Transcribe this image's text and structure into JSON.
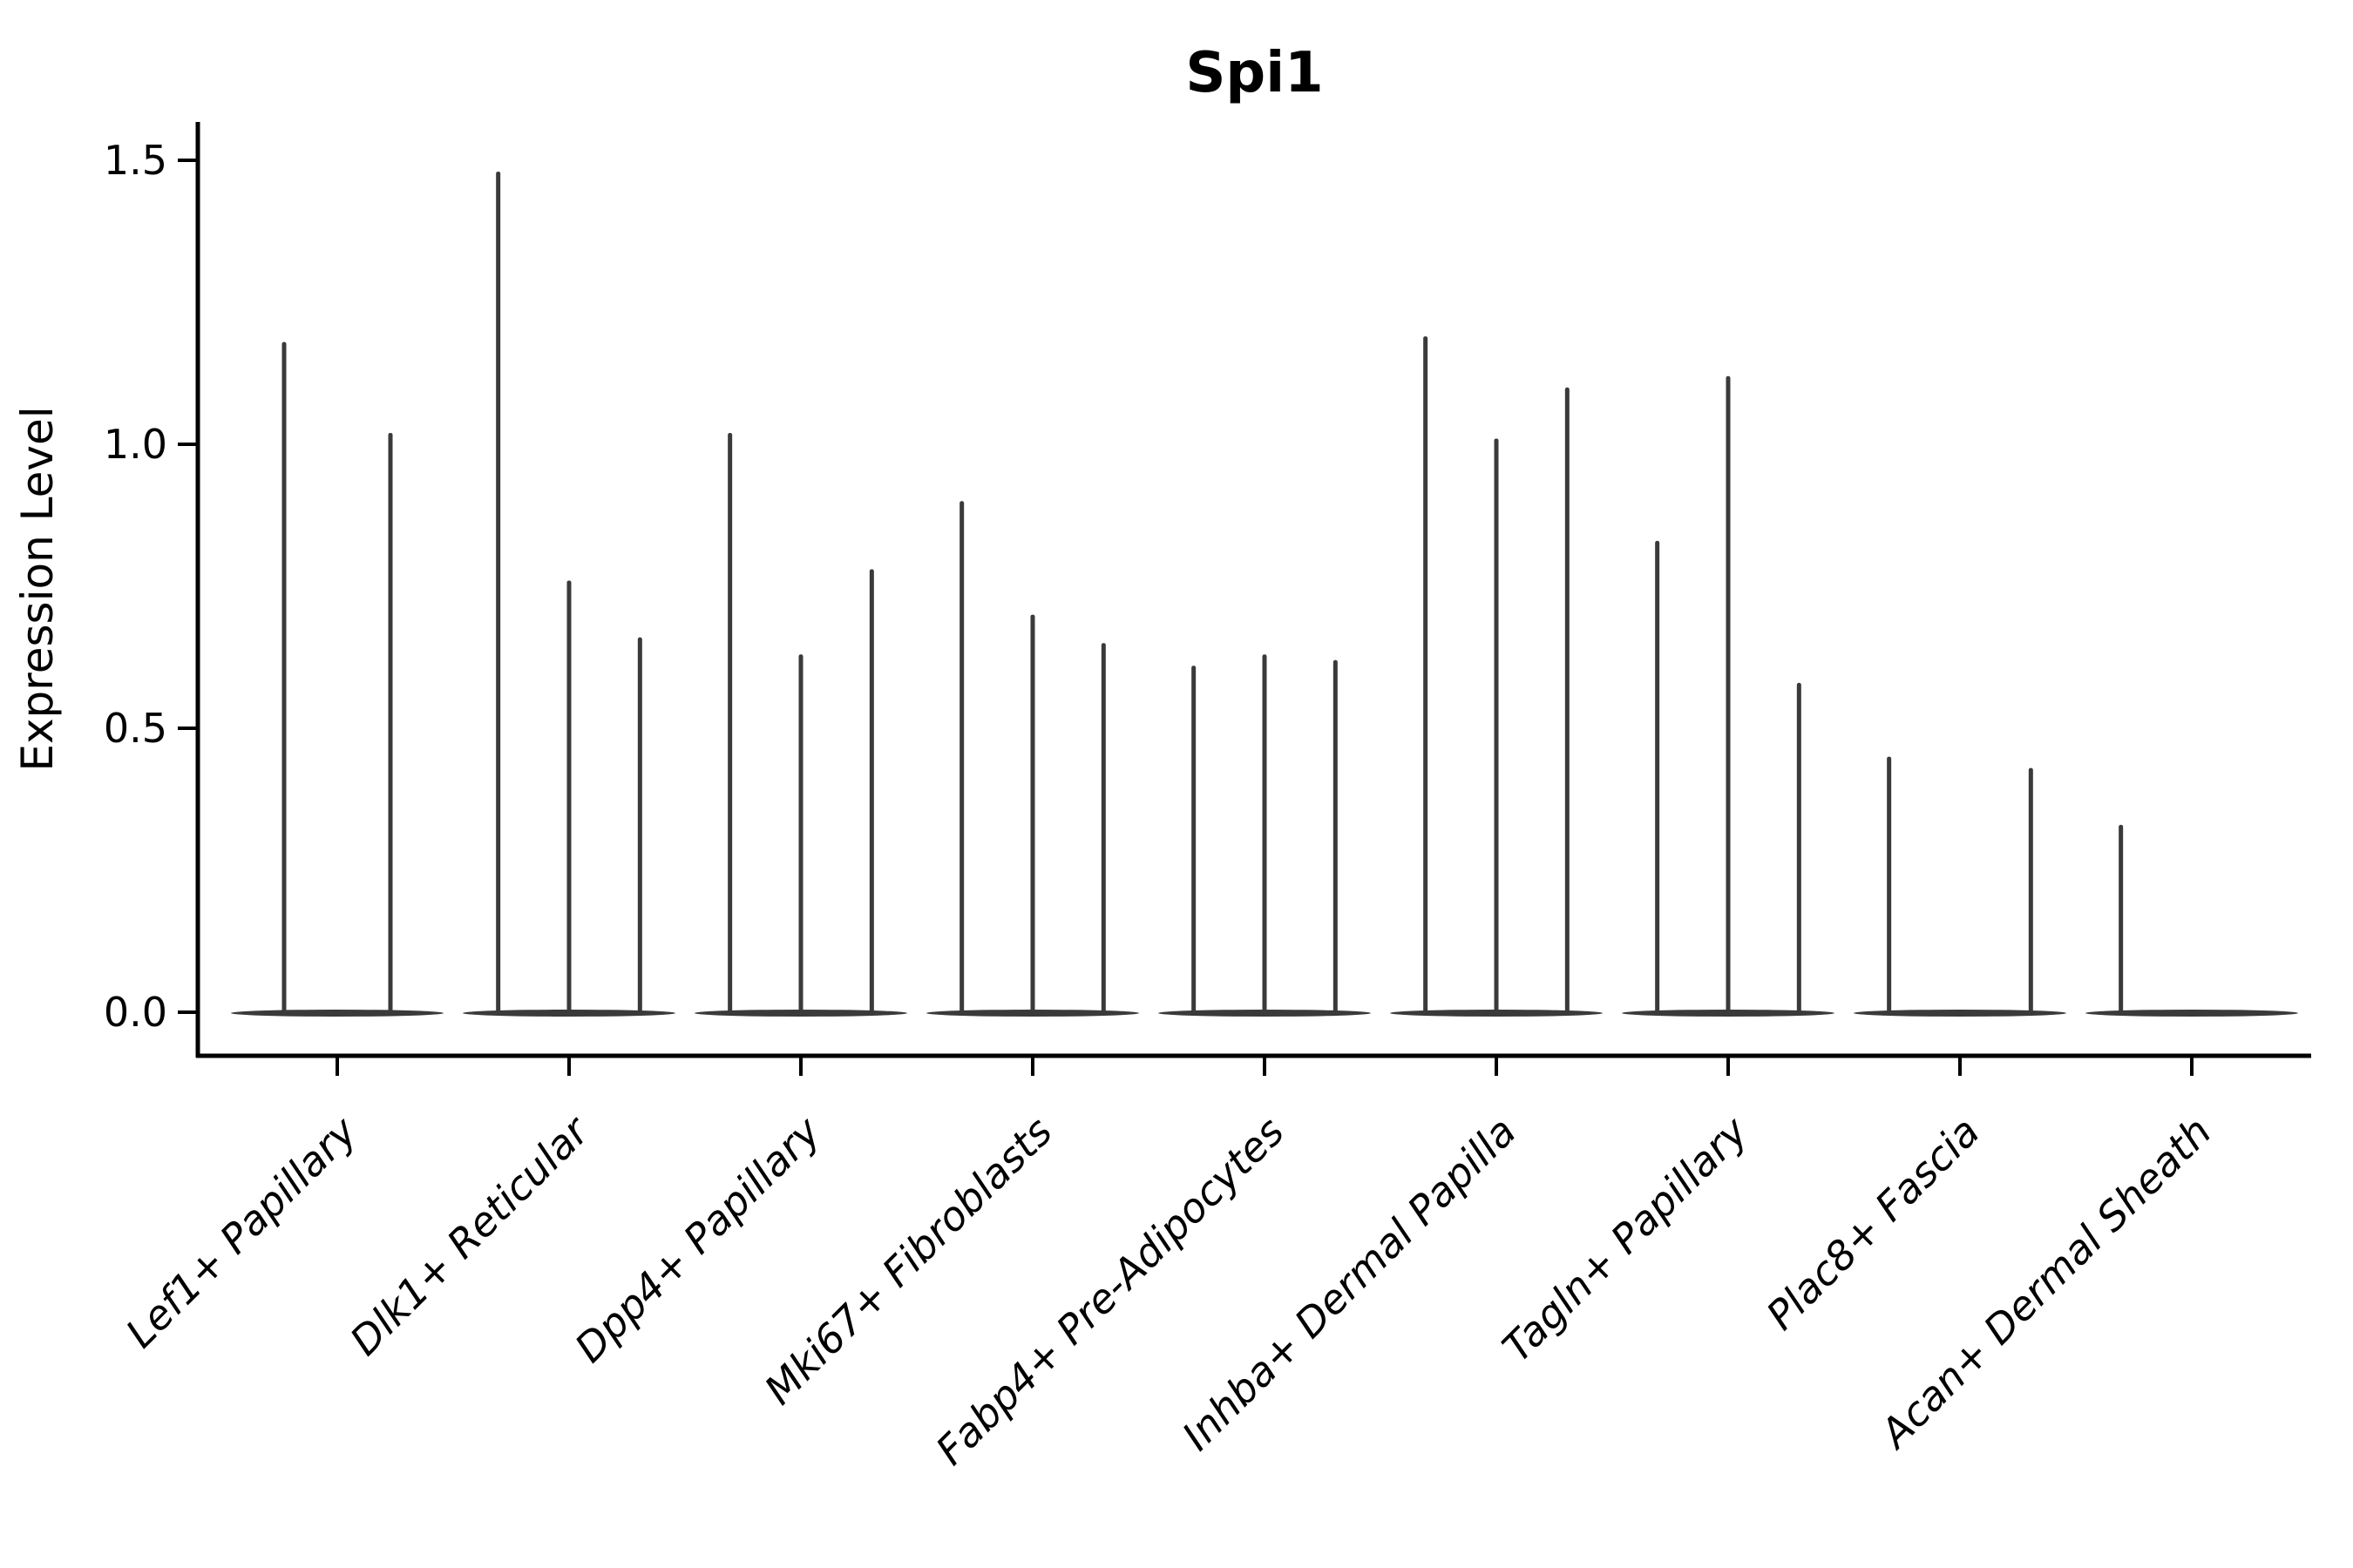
{
  "figure": {
    "title": "Spi1",
    "ylabel": "Expression Level"
  },
  "chart_data": {
    "type": "violin",
    "title": "Spi1",
    "xlabel": "",
    "ylabel": "Expression Level",
    "ylim": [
      0,
      1.55
    ],
    "yticks": [
      0.0,
      0.5,
      1.0,
      1.5
    ],
    "ytick_labels": [
      "0.0",
      "0.5",
      "1.0",
      "1.5"
    ],
    "grid": false,
    "legend": false,
    "categories": [
      "Lef1+ Papillary",
      "Dlk1+ Reticular",
      "Dpp4+ Papillary",
      "Mki67+ Fibroblasts",
      "Fabp4+ Pre-Adipocytes",
      "Inhba+ Dermal Papilla",
      "Tagln+ Papillary",
      "Plac8+ Fascia",
      "Acan+ Dermal Sheath"
    ],
    "groups": [
      {
        "category": "Lef1+ Papillary",
        "violin_max_values": [
          1.18,
          1.02
        ]
      },
      {
        "category": "Dlk1+ Reticular",
        "violin_max_values": [
          1.48,
          0.76,
          0.66
        ]
      },
      {
        "category": "Dpp4+ Papillary",
        "violin_max_values": [
          1.02,
          0.63,
          0.78
        ]
      },
      {
        "category": "Mki67+ Fibroblasts",
        "violin_max_values": [
          0.9,
          0.7,
          0.65
        ]
      },
      {
        "category": "Fabp4+ Pre-Adipocytes",
        "violin_max_values": [
          0.61,
          0.63,
          0.62
        ]
      },
      {
        "category": "Inhba+ Dermal Papilla",
        "violin_max_values": [
          1.19,
          1.01,
          1.1
        ]
      },
      {
        "category": "Tagln+ Papillary",
        "violin_max_values": [
          0.83,
          1.12,
          0.58
        ]
      },
      {
        "category": "Plac8+ Fascia",
        "violin_max_values": [
          0.45,
          0.0,
          0.43
        ]
      },
      {
        "category": "Acan+ Dermal Sheath",
        "violin_max_values": [
          0.33,
          0.0,
          0.0
        ]
      }
    ],
    "colors": {
      "violin": "#3a3a3a",
      "axis": "#000000",
      "text": "#000000",
      "background": "#ffffff"
    }
  }
}
